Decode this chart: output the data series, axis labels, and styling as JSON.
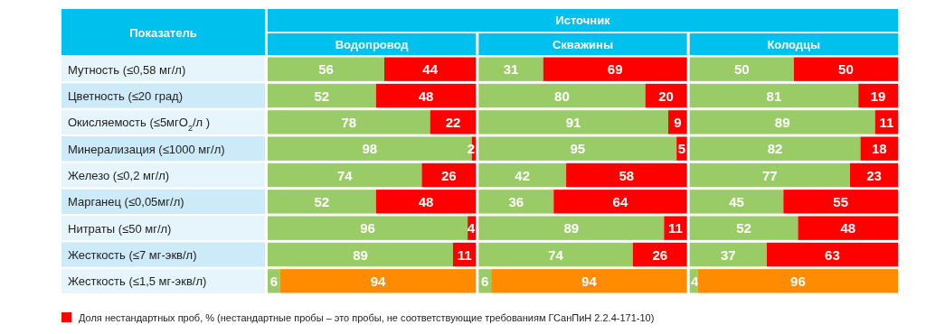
{
  "chart_data": [
    {
      "type": "bar",
      "orientation": "horizontal",
      "stacked": true,
      "title": "Водопровод",
      "ylabel": "Показатель",
      "annotations": [
        "Источник"
      ],
      "legend": "bottom",
      "data_labels": true,
      "tick_labels": "y",
      "xlim": [
        0,
        100
      ],
      "categories": [
        "Мутность (≤0,58 мг/л)",
        "Цветность (≤20 град)",
        "Окисляемость (≤5мгO$_{2}$/л )",
        "Минерализация (≤1000 мг/л)",
        "Железо (≤0,2 мг/л)",
        "Марганец (≤0,05мг/л)",
        "Нитраты (≤50 мг/л)",
        "Жесткость (≤7 мг-экв/л)",
        "Жесткость (≤1,5 мг-экв/л)"
      ],
      "series": [
        {
          "color": "#99cc66",
          "values": [
            56,
            52,
            78,
            98,
            74,
            52,
            96,
            89,
            6
          ]
        },
        {
          "name": "Доля нестандартных проб, % (нестандартные пробы – это пробы, не соответствующие требованиям ГСанПиН 2.2.4-171-10)",
          "color": "#ff0000",
          "colors": [
            "#ff0000",
            "#ff0000",
            "#ff0000",
            "#ff0000",
            "#ff0000",
            "#ff0000",
            "#ff0000",
            "#ff0000",
            "#ff8c00"
          ],
          "values": [
            44,
            48,
            22,
            2,
            26,
            48,
            4,
            11,
            94
          ]
        }
      ]
    },
    {
      "type": "bar",
      "orientation": "horizontal",
      "stacked": true,
      "title": "Скважины",
      "xlim": [
        0,
        100
      ],
      "categories": [
        null,
        null,
        null,
        null,
        null,
        null,
        null,
        null,
        null
      ],
      "series": [
        {
          "color": "#99cc66",
          "values": [
            31,
            80,
            91,
            95,
            42,
            36,
            89,
            74,
            6
          ],
          "value_labels": [
            "31",
            "80",
            "91",
            "95",
            "42",
            "36",
            "89",
            "74",
            "6"
          ]
        },
        {
          "color": "#ff0000",
          "colors": [
            "#ff0000",
            "#ff0000",
            "#ff0000",
            "#ff0000",
            "#ff0000",
            "#ff0000",
            "#ff0000",
            "#ff0000",
            "#ff8c00"
          ],
          "values": [
            69,
            20,
            9,
            5,
            58,
            64,
            11,
            26,
            94
          ],
          "value_labels": [
            "69",
            "20",
            "9",
            "5",
            "58",
            "64",
            "11",
            "26",
            "94"
          ]
        }
      ]
    },
    {
      "type": "bar",
      "orientation": "horizontal",
      "stacked": true,
      "title": "Колодцы",
      "data_labels": true,
      "xlim": [
        0,
        100
      ],
      "categories": [
        null,
        null,
        null,
        null,
        null,
        null,
        null,
        null,
        null
      ],
      "series": [
        {
          "color": "#99cc66",
          "values": [
            50,
            81,
            89,
            82,
            77,
            45,
            52,
            37,
            4
          ]
        },
        {
          "color": "#ff0000",
          "colors": [
            "#ff0000",
            "#ff0000",
            "#ff0000",
            "#ff0000",
            "#ff0000",
            "#ff0000",
            "#ff0000",
            "#ff0000",
            "#ff8c00"
          ],
          "values": [
            50,
            19,
            11,
            18,
            23,
            55,
            48,
            63,
            96
          ]
        }
      ]
    }
  ]
}
